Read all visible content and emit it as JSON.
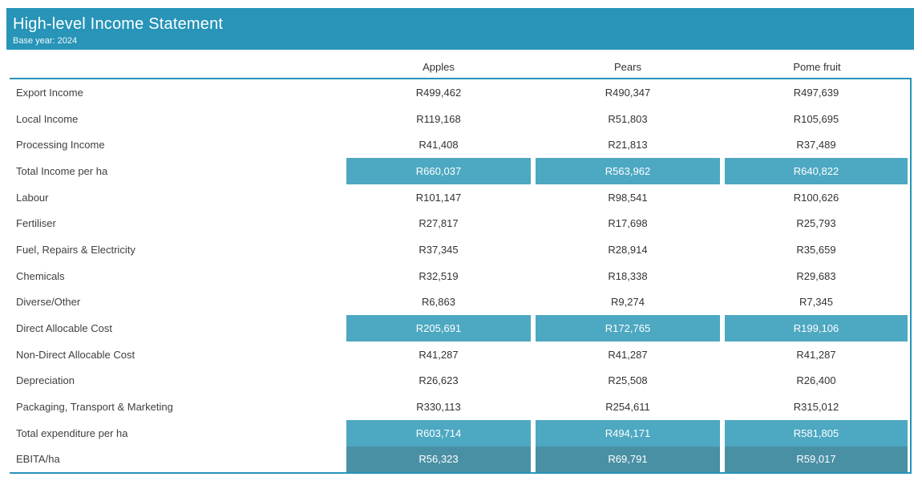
{
  "header": {
    "title": "High-level Income Statement",
    "subtitle": "Base year: 2024",
    "bg_color": "#2794B8"
  },
  "table": {
    "columns": [
      "Apples",
      "Pears",
      "Pome fruit"
    ],
    "rows": [
      {
        "label": "Export Income",
        "values": [
          "R499,462",
          "R490,347",
          "R497,639"
        ],
        "style": "normal"
      },
      {
        "label": "Local Income",
        "values": [
          "R119,168",
          "R51,803",
          "R105,695"
        ],
        "style": "normal"
      },
      {
        "label": "Processing Income",
        "values": [
          "R41,408",
          "R21,813",
          "R37,489"
        ],
        "style": "normal"
      },
      {
        "label": "Total Income per ha",
        "values": [
          "R660,037",
          "R563,962",
          "R640,822"
        ],
        "style": "subtotal"
      },
      {
        "label": "Labour",
        "values": [
          "R101,147",
          "R98,541",
          "R100,626"
        ],
        "style": "normal"
      },
      {
        "label": "Fertiliser",
        "values": [
          "R27,817",
          "R17,698",
          "R25,793"
        ],
        "style": "normal"
      },
      {
        "label": "Fuel, Repairs & Electricity",
        "values": [
          "R37,345",
          "R28,914",
          "R35,659"
        ],
        "style": "normal"
      },
      {
        "label": "Chemicals",
        "values": [
          "R32,519",
          "R18,338",
          "R29,683"
        ],
        "style": "normal"
      },
      {
        "label": "Diverse/Other",
        "values": [
          "R6,863",
          "R9,274",
          "R7,345"
        ],
        "style": "normal"
      },
      {
        "label": "Direct Allocable Cost",
        "values": [
          "R205,691",
          "R172,765",
          "R199,106"
        ],
        "style": "subtotal"
      },
      {
        "label": "Non-Direct Allocable Cost",
        "values": [
          "R41,287",
          "R41,287",
          "R41,287"
        ],
        "style": "normal"
      },
      {
        "label": "Depreciation",
        "values": [
          "R26,623",
          "R25,508",
          "R26,400"
        ],
        "style": "normal"
      },
      {
        "label": "Packaging, Transport & Marketing",
        "values": [
          "R330,113",
          "R254,611",
          "R315,012"
        ],
        "style": "normal"
      },
      {
        "label": "Total expenditure per ha",
        "values": [
          "R603,714",
          "R494,171",
          "R581,805"
        ],
        "style": "subtotal"
      },
      {
        "label": "EBITA/ha",
        "values": [
          "R56,323",
          "R69,791",
          "R59,017"
        ],
        "style": "total"
      }
    ],
    "colors": {
      "subtotal_bg": "#4DA8C2",
      "total_bg": "#4A90A5",
      "border": "#2794B8"
    }
  },
  "chart_data": {
    "type": "table",
    "title": "High-level Income Statement",
    "subtitle": "Base year: 2024",
    "currency": "R",
    "columns": [
      "Apples",
      "Pears",
      "Pome fruit"
    ],
    "rows": [
      {
        "label": "Export Income",
        "values": [
          499462,
          490347,
          497639
        ]
      },
      {
        "label": "Local Income",
        "values": [
          119168,
          51803,
          105695
        ]
      },
      {
        "label": "Processing Income",
        "values": [
          41408,
          21813,
          37489
        ]
      },
      {
        "label": "Total Income per ha",
        "values": [
          660037,
          563962,
          640822
        ]
      },
      {
        "label": "Labour",
        "values": [
          101147,
          98541,
          100626
        ]
      },
      {
        "label": "Fertiliser",
        "values": [
          27817,
          17698,
          25793
        ]
      },
      {
        "label": "Fuel, Repairs & Electricity",
        "values": [
          37345,
          28914,
          35659
        ]
      },
      {
        "label": "Chemicals",
        "values": [
          32519,
          18338,
          29683
        ]
      },
      {
        "label": "Diverse/Other",
        "values": [
          6863,
          9274,
          7345
        ]
      },
      {
        "label": "Direct Allocable Cost",
        "values": [
          205691,
          172765,
          199106
        ]
      },
      {
        "label": "Non-Direct Allocable Cost",
        "values": [
          41287,
          41287,
          41287
        ]
      },
      {
        "label": "Depreciation",
        "values": [
          26623,
          25508,
          26400
        ]
      },
      {
        "label": "Packaging, Transport & Marketing",
        "values": [
          330113,
          254611,
          315012
        ]
      },
      {
        "label": "Total expenditure per ha",
        "values": [
          603714,
          494171,
          581805
        ]
      },
      {
        "label": "EBITA/ha",
        "values": [
          56323,
          69791,
          59017
        ]
      }
    ],
    "highlight_rows": [
      "Total Income per ha",
      "Direct Allocable Cost",
      "Total expenditure per ha",
      "EBITA/ha"
    ]
  }
}
